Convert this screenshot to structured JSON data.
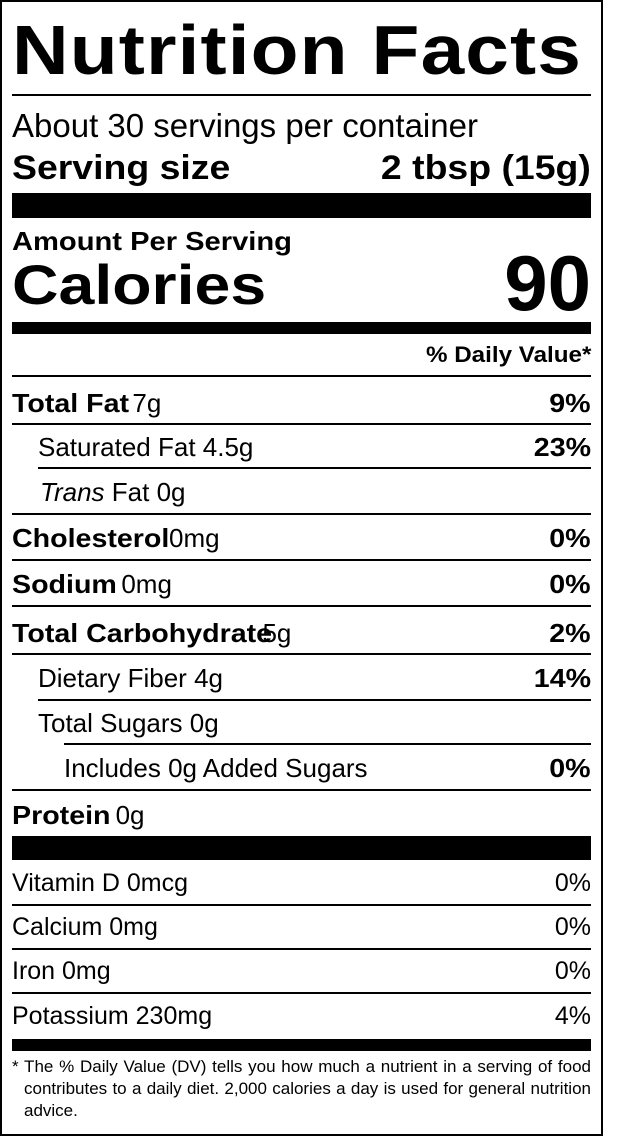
{
  "title": "Nutrition Facts",
  "servings_per_container": "About 30 servings per container",
  "serving_size": {
    "label": "Serving size",
    "value": "2 tbsp (15g)"
  },
  "amount_per_serving": "Amount Per Serving",
  "calories": {
    "label": "Calories",
    "value": "90"
  },
  "daily_value_header": "% Daily Value*",
  "nutrients": [
    {
      "name": "Total Fat",
      "amount": "7g",
      "dv": "9%"
    },
    {
      "name": "Saturated Fat",
      "amount": "4.5g",
      "dv": "23%"
    },
    {
      "name": "Trans",
      "suffix": "Fat",
      "amount": "0g",
      "dv": ""
    },
    {
      "name": "Cholesterol",
      "amount": "0mg",
      "dv": "0%"
    },
    {
      "name": "Sodium",
      "amount": "0mg",
      "dv": "0%"
    },
    {
      "name": "Total Carbohydrate",
      "amount": "5g",
      "dv": "2%"
    },
    {
      "name": "Dietary Fiber",
      "amount": "4g",
      "dv": "14%"
    },
    {
      "name": "Total Sugars",
      "amount": "0g",
      "dv": ""
    },
    {
      "name": "Includes 0g Added Sugars",
      "amount": "",
      "dv": "0%"
    },
    {
      "name": "Protein",
      "amount": "0g",
      "dv": ""
    }
  ],
  "vitamins": [
    {
      "name": "Vitamin D 0mcg",
      "dv": "0%"
    },
    {
      "name": "Calcium 0mg",
      "dv": "0%"
    },
    {
      "name": "Iron 0mg",
      "dv": "0%"
    },
    {
      "name": "Potassium 230mg",
      "dv": "4%"
    }
  ],
  "footnote": "* The % Daily Value (DV) tells you how much a nutrient in a serving of food contributes to a daily diet. 2,000 calories a day is used for general nutrition advice."
}
